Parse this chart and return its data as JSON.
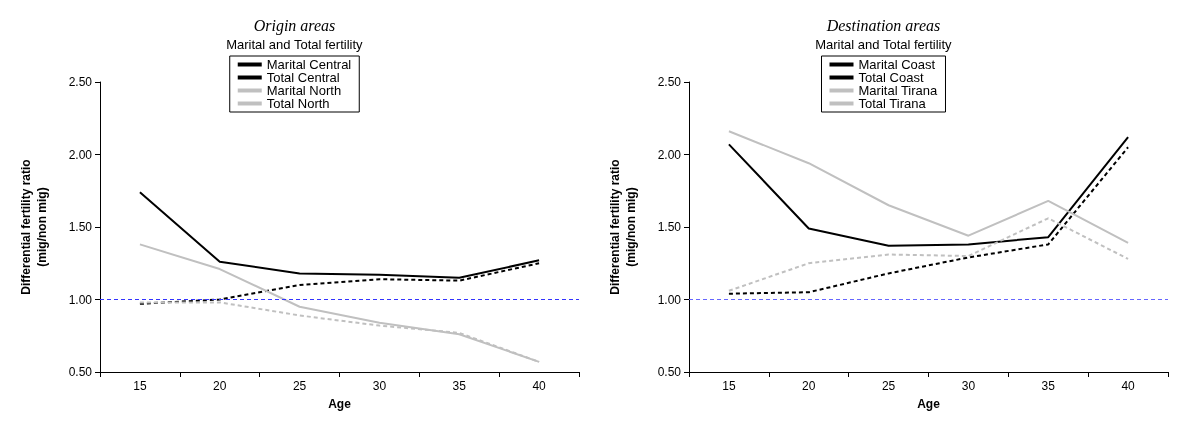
{
  "chart_data": [
    {
      "type": "line",
      "title": "Origin areas",
      "xlabel": "Age",
      "ylabel": "Differential fertility ratio\n(mig/non mig)",
      "legend_title": "Marital and Total fertility",
      "legend": "top",
      "marker": "none",
      "grid": false,
      "categories": [
        "15",
        "20",
        "25",
        "30",
        "35",
        "40"
      ],
      "ylim": [
        0.5,
        2.5
      ],
      "yticks": [
        {
          "value": 0.5,
          "label": "0.50"
        },
        {
          "value": 1,
          "label": "1.00"
        },
        {
          "value": 1.5,
          "label": "1.50"
        },
        {
          "value": 2,
          "label": "2.00"
        },
        {
          "value": 2.5,
          "label": "2.50"
        }
      ],
      "ref_lines": [
        {
          "axis": "y",
          "value": 1,
          "color": "#3333ff",
          "line_style": "dashed"
        }
      ],
      "series": [
        {
          "name": "Marital Central",
          "color": "#000000",
          "line_style": "dashed",
          "values": [
            0.97,
            1.0,
            1.1,
            1.14,
            1.13,
            1.25
          ]
        },
        {
          "name": "Total Central",
          "color": "#000000",
          "line_style": "solid",
          "values": [
            1.74,
            1.26,
            1.18,
            1.17,
            1.15,
            1.27
          ]
        },
        {
          "name": "Marital North",
          "color": "#c0c0c0",
          "line_style": "dashed",
          "values": [
            0.98,
            0.98,
            0.89,
            0.82,
            0.77,
            0.57
          ]
        },
        {
          "name": "Total North",
          "color": "#c0c0c0",
          "line_style": "solid",
          "values": [
            1.38,
            1.21,
            0.95,
            0.84,
            0.76,
            0.57
          ]
        }
      ]
    },
    {
      "type": "line",
      "title": "Destination areas",
      "xlabel": "Age",
      "ylabel": "Differential fertility ratio\n(mig/non mig)",
      "legend_title": "Marital and Total fertility",
      "legend": "top",
      "marker": "none",
      "grid": false,
      "categories": [
        "15",
        "20",
        "25",
        "30",
        "35",
        "40"
      ],
      "ylim": [
        0.5,
        2.5
      ],
      "yticks": [
        {
          "value": 0.5,
          "label": "0.50"
        },
        {
          "value": 1,
          "label": "1.00"
        },
        {
          "value": 1.5,
          "label": "1.50"
        },
        {
          "value": 2,
          "label": "2.00"
        },
        {
          "value": 2.5,
          "label": "2.50"
        }
      ],
      "ref_lines": [
        {
          "axis": "y",
          "value": 1,
          "color": "#6666ff",
          "line_style": "dashed"
        }
      ],
      "series": [
        {
          "name": "Marital Coast",
          "color": "#000000",
          "line_style": "dashed",
          "values": [
            1.04,
            1.05,
            1.18,
            1.29,
            1.38,
            2.05
          ]
        },
        {
          "name": "Total Coast",
          "color": "#000000",
          "line_style": "solid",
          "values": [
            2.07,
            1.49,
            1.37,
            1.38,
            1.43,
            2.12
          ]
        },
        {
          "name": "Marital Tirana",
          "color": "#c0c0c0",
          "line_style": "dashed",
          "values": [
            1.06,
            1.25,
            1.31,
            1.3,
            1.56,
            1.28
          ]
        },
        {
          "name": "Total Tirana",
          "color": "#c0c0c0",
          "line_style": "solid",
          "values": [
            2.16,
            1.94,
            1.65,
            1.44,
            1.68,
            1.39
          ]
        }
      ]
    }
  ]
}
